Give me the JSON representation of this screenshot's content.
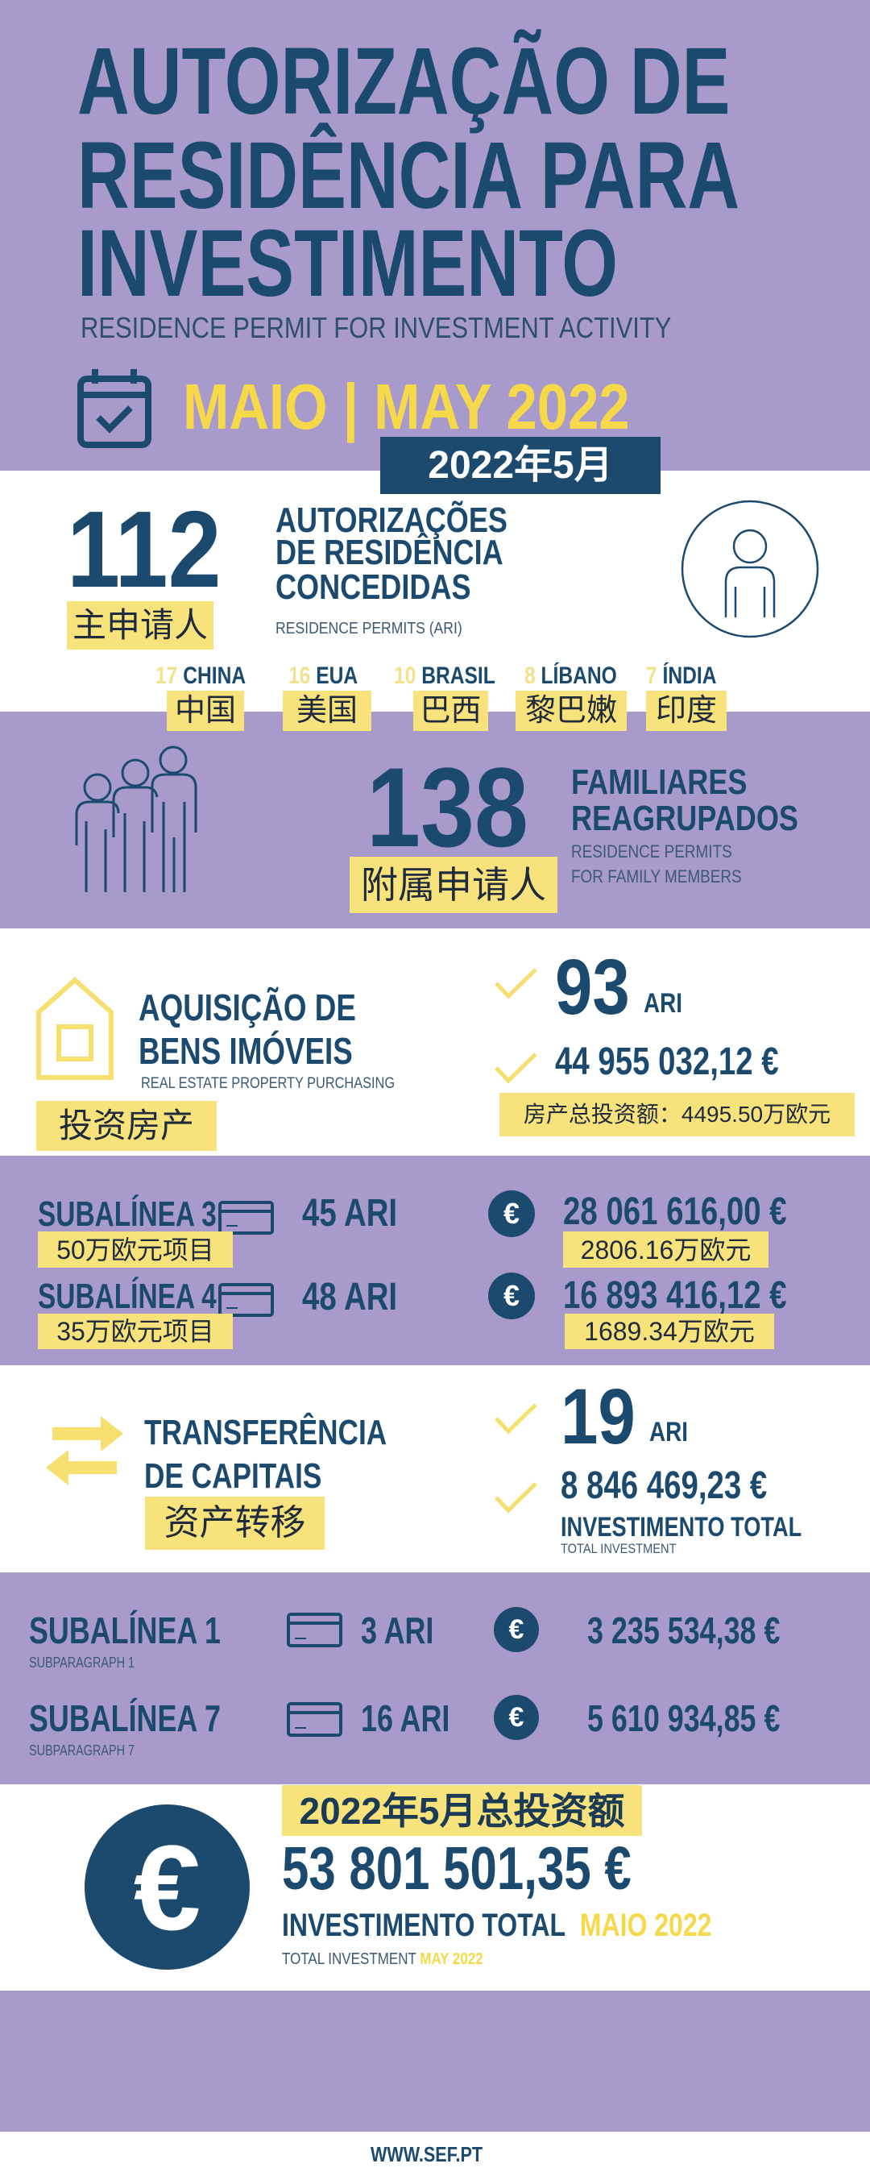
{
  "header": {
    "title_lines": [
      "AUTORIZAÇÃO DE",
      "RESIDÊNCIA PARA",
      "INVESTIMENTO"
    ],
    "subtitle": "RESIDENCE PERMIT FOR INVESTMENT ACTIVITY",
    "period": "MAIO | MAY 2022",
    "period_cn": "2022年5月",
    "calendar_icon": "calendar-check-icon"
  },
  "main_applicants": {
    "count": "112",
    "label_lines": [
      "AUTORIZAÇÕES",
      "DE RESIDÊNCIA",
      "CONCEDIDAS"
    ],
    "sublabel": "RESIDENCE PERMITS  (ARI)",
    "cn_label": "主申请人",
    "icon": "person-icon",
    "countries": [
      {
        "count": "17",
        "name": "CHINA",
        "cn": "中国"
      },
      {
        "count": "16",
        "name": "EUA",
        "cn": "美国"
      },
      {
        "count": "10",
        "name": "BRASIL",
        "cn": "巴西"
      },
      {
        "count": "8",
        "name": "LÍBANO",
        "cn": "黎巴嫩"
      },
      {
        "count": "7",
        "name": "ÍNDIA",
        "cn": "印度"
      }
    ]
  },
  "family": {
    "count": "138",
    "label_lines": [
      "FAMILIARES",
      "REAGRUPADOS"
    ],
    "sublabel_lines": [
      "RESIDENCE PERMITS",
      "FOR FAMILY MEMBERS"
    ],
    "cn_label": "附属申请人",
    "icon": "family-icon"
  },
  "real_estate": {
    "label_lines": [
      "AQUISIÇÃO DE",
      "BENS IMÓVEIS"
    ],
    "sublabel": "REAL ESTATE PROPERTY PURCHASING",
    "cn_label": "投资房产",
    "count": "93",
    "unit": "ARI",
    "amount": "44 955 032,12 €",
    "cn_amount": "房产总投资额：4495.50万欧元",
    "icon": "house-icon",
    "rows": [
      {
        "label": "SUBALÍNEA 3",
        "cn_label": "50万欧元项目",
        "ari": "45 ARI",
        "amount": "28 061 616,00 €",
        "cn_amount": "2806.16万欧元"
      },
      {
        "label": "SUBALÍNEA 4",
        "cn_label": "35万欧元项目",
        "ari": "48 ARI",
        "amount": "16 893 416,12 €",
        "cn_amount": "1689.34万欧元"
      }
    ]
  },
  "capital": {
    "label_lines": [
      "TRANSFERÊNCIA",
      "DE CAPITAIS"
    ],
    "cn_label": "资产转移",
    "count": "19",
    "unit": "ARI",
    "amount": "8 846 469,23 €",
    "total_label": "INVESTIMENTO TOTAL",
    "total_sublabel": "TOTAL INVESTMENT",
    "icon": "transfer-arrows-icon",
    "rows": [
      {
        "label": "SUBALÍNEA 1",
        "sublabel": "SUBPARAGRAPH 1",
        "ari": "3 ARI",
        "amount": "3 235 534,38 €"
      },
      {
        "label": "SUBALÍNEA 7",
        "sublabel": "SUBPARAGRAPH 7",
        "ari": "16 ARI",
        "amount": "5 610 934,85 €"
      }
    ]
  },
  "total": {
    "cn_label": "2022年5月总投资额",
    "amount": "53 801 501,35 €",
    "label": "INVESTIMENTO TOTAL",
    "label_period": "MAIO 2022",
    "sublabel": "TOTAL INVESTMENT",
    "sublabel_period": "MAY 2022",
    "symbol": "€"
  },
  "footer": {
    "url": "WWW.SEF.PT"
  },
  "colors": {
    "purple": "#a99acc",
    "navy": "#1b4a6e",
    "yellow": "#f6d94a",
    "highlight": "#f8e27c"
  }
}
